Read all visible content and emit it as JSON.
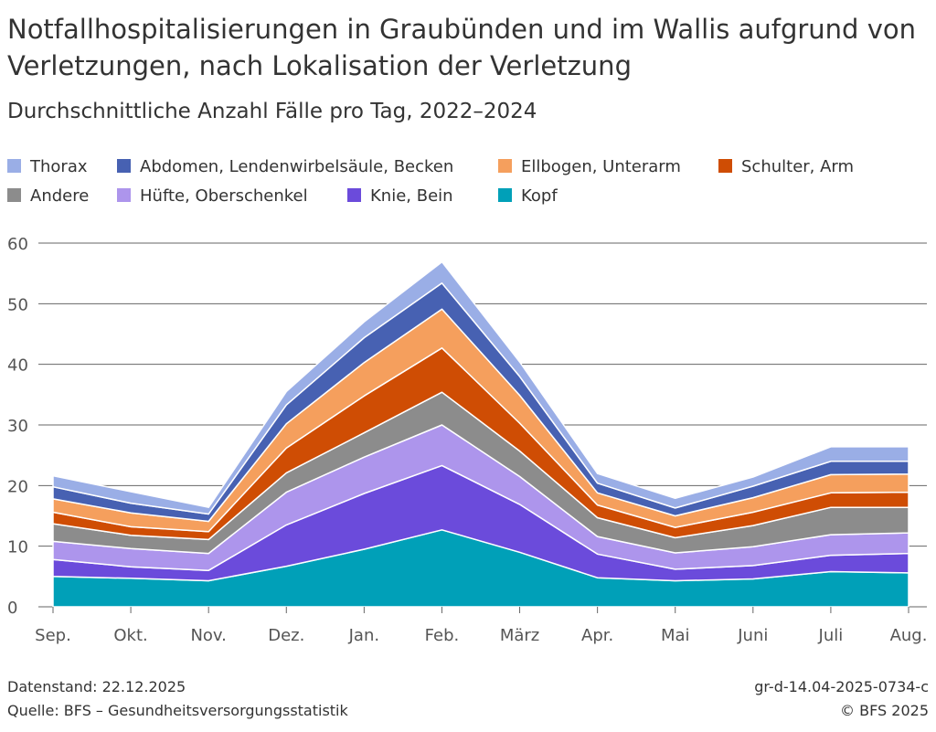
{
  "chart_data": {
    "type": "area",
    "stacked": true,
    "title": "Notfallhospitalisierungen in Graubünden und im Wallis aufgrund von Verletzungen, nach Lokalisation der Verletzung",
    "subtitle": "Durchschnittliche Anzahl Fälle pro Tag, 2022–2024",
    "categories": [
      "Sep.",
      "Okt.",
      "Nov.",
      "Dez.",
      "Jan.",
      "Feb.",
      "März",
      "Apr.",
      "Mai",
      "Juni",
      "Juli",
      "Aug."
    ],
    "ylim": [
      0,
      60
    ],
    "yticks": [
      0,
      10,
      20,
      30,
      40,
      50,
      60
    ],
    "grid": true,
    "legend_position": "top",
    "series": [
      {
        "name": "Kopf",
        "color": "#00a0b8",
        "values": [
          5.0,
          4.7,
          4.3,
          6.7,
          9.5,
          12.7,
          9.0,
          4.8,
          4.3,
          4.6,
          5.8,
          5.6
        ]
      },
      {
        "name": "Knie, Bein",
        "color": "#6b4bdb",
        "values": [
          2.8,
          1.9,
          1.7,
          6.8,
          9.2,
          10.6,
          7.9,
          3.9,
          1.9,
          2.2,
          2.7,
          3.2
        ]
      },
      {
        "name": "Hüfte, Oberschenkel",
        "color": "#ad95ec",
        "values": [
          3.0,
          3.0,
          2.8,
          5.4,
          6.0,
          6.7,
          4.6,
          2.9,
          2.7,
          3.1,
          3.4,
          3.4
        ]
      },
      {
        "name": "Andere",
        "color": "#8c8c8c",
        "values": [
          2.9,
          2.2,
          2.3,
          3.2,
          4.0,
          5.4,
          4.2,
          3.1,
          2.5,
          3.5,
          4.5,
          4.2
        ]
      },
      {
        "name": "Schulter, Arm",
        "color": "#cf4d04",
        "values": [
          1.9,
          1.4,
          1.3,
          4.1,
          6.1,
          7.3,
          4.6,
          2.1,
          1.7,
          2.2,
          2.4,
          2.5
        ]
      },
      {
        "name": "Ellbogen, Unterarm",
        "color": "#f59f5d",
        "values": [
          2.2,
          2.3,
          1.7,
          4.0,
          5.5,
          6.4,
          4.6,
          2.0,
          1.9,
          2.4,
          3.0,
          3.0
        ]
      },
      {
        "name": "Abdomen, Lendenwirbelsäule, Becken",
        "color": "#4761b2",
        "values": [
          2.0,
          1.6,
          1.2,
          3.1,
          4.1,
          4.3,
          3.1,
          1.6,
          1.3,
          1.9,
          2.2,
          2.1
        ]
      },
      {
        "name": "Thorax",
        "color": "#9aaee6",
        "values": [
          1.8,
          1.9,
          1.1,
          2.2,
          2.6,
          3.5,
          2.4,
          1.6,
          1.6,
          1.5,
          2.4,
          2.4
        ]
      }
    ]
  },
  "legend": {
    "row1": [
      {
        "label": "Thorax",
        "color": "#9aaee6"
      },
      {
        "label": "Abdomen, Lendenwirbelsäule, Becken",
        "color": "#4761b2"
      },
      {
        "label": "Ellbogen, Unterarm",
        "color": "#f59f5d"
      },
      {
        "label": "Schulter, Arm",
        "color": "#cf4d04"
      }
    ],
    "row2": [
      {
        "label": "Andere",
        "color": "#8c8c8c"
      },
      {
        "label": "Hüfte, Oberschenkel",
        "color": "#ad95ec"
      },
      {
        "label": "Knie, Bein",
        "color": "#6b4bdb"
      },
      {
        "label": "Kopf",
        "color": "#00a0b8"
      }
    ]
  },
  "footer": {
    "datenstand": "Datenstand: 22.12.2025",
    "quelle": "Quelle: BFS – Gesundheitsversorgungsstatistik",
    "code": "gr-d-14.04-2025-0734-c",
    "copyright": "© BFS 2025"
  }
}
